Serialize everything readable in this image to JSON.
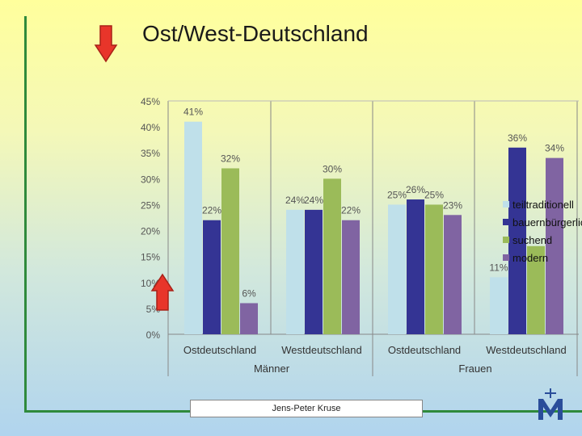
{
  "slide": {
    "title": "Ost/West-Deutschland",
    "footer": "Jens-Peter Kruse",
    "colors": {
      "frame": "#2f8a3c",
      "arrow": "#e8352a",
      "logo": "#2a4d9a"
    },
    "icons": [
      "arrow-down-icon",
      "arrow-up-icon",
      "logo-icon"
    ]
  },
  "chart_data": {
    "type": "bar",
    "categories": [
      [
        "Männer",
        "Ostdeutschland"
      ],
      [
        "Männer",
        "Westdeutschland"
      ],
      [
        "Frauen",
        "Ostdeutschland"
      ],
      [
        "Frauen",
        "Westdeutschland"
      ]
    ],
    "group_labels": [
      "Männer",
      "Frauen"
    ],
    "category_labels": [
      "Ostdeutschland",
      "Westdeutschland",
      "Ostdeutschland",
      "Westdeutschland"
    ],
    "series": [
      {
        "name": "teiltraditionell",
        "color": "#bfe0ea",
        "values": [
          41,
          24,
          25,
          11
        ]
      },
      {
        "name": "bauernbürgerlich",
        "color": "#343494",
        "values": [
          22,
          24,
          26,
          36
        ]
      },
      {
        "name": "suchend",
        "color": "#9bbb59",
        "values": [
          32,
          30,
          25,
          17
        ]
      },
      {
        "name": "modern",
        "color": "#8064a2",
        "values": [
          6,
          22,
          23,
          34
        ]
      }
    ],
    "data_labels": [
      [
        "41%",
        "24%",
        "25%",
        "11%"
      ],
      [
        "22%",
        "24%",
        "26%",
        "36%"
      ],
      [
        "32%",
        "30%",
        "25%",
        ""
      ],
      [
        "6%",
        "22%",
        "23%",
        "34%"
      ]
    ],
    "y_ticks": [
      "0%",
      "5%",
      "10%",
      "15%",
      "20%",
      "25%",
      "30%",
      "35%",
      "40%",
      "45%"
    ],
    "ylim": [
      0,
      45
    ],
    "grid": false,
    "legend": "right"
  }
}
